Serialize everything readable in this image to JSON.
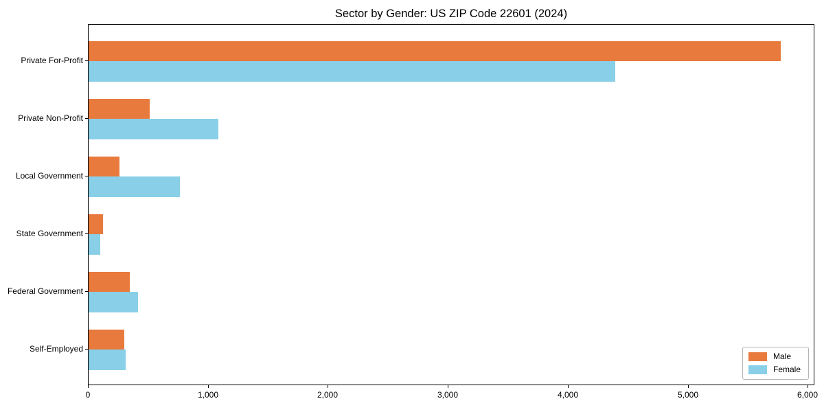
{
  "chart_data": {
    "type": "bar",
    "orientation": "horizontal",
    "title": "Sector by Gender: US ZIP Code 22601 (2024)",
    "categories": [
      "Private For-Profit",
      "Private Non-Profit",
      "Local Government",
      "State Government",
      "Federal Government",
      "Self-Employed"
    ],
    "series": [
      {
        "name": "Male",
        "color": "#e87a3d",
        "values": [
          5770,
          510,
          255,
          120,
          345,
          300
        ]
      },
      {
        "name": "Female",
        "color": "#89cfe8",
        "values": [
          4390,
          1080,
          760,
          95,
          410,
          310
        ]
      }
    ],
    "xlabel": "",
    "ylabel": "",
    "xlim": [
      0,
      6000
    ],
    "xticks": [
      0,
      1000,
      2000,
      3000,
      4000,
      5000,
      6000
    ],
    "xtick_labels": [
      "0",
      "1,000",
      "2,000",
      "3,000",
      "4,000",
      "5,000",
      "6,000"
    ],
    "grid": false,
    "legend_position": "lower right",
    "axis_color": "#000000"
  }
}
